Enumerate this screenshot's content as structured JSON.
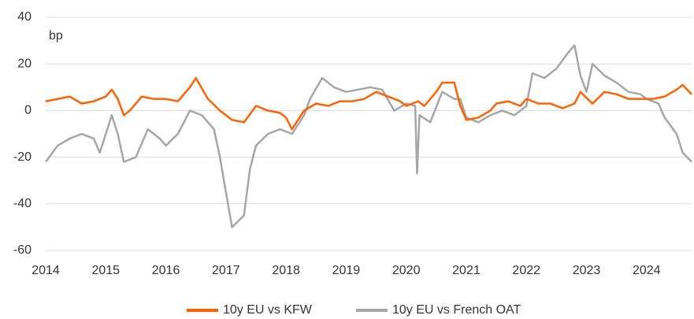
{
  "chart_data": {
    "type": "line",
    "y_label": "bp",
    "x": {
      "kfw": [
        2014.0,
        2014.2,
        2014.4,
        2014.6,
        2014.8,
        2015.0,
        2015.1,
        2015.2,
        2015.3,
        2015.4,
        2015.6,
        2015.8,
        2016.0,
        2016.2,
        2016.4,
        2016.5,
        2016.7,
        2016.9,
        2017.1,
        2017.3,
        2017.5,
        2017.7,
        2017.9,
        2018.0,
        2018.1,
        2018.3,
        2018.5,
        2018.7,
        2018.9,
        2019.1,
        2019.3,
        2019.5,
        2019.7,
        2019.9,
        2020.0,
        2020.2,
        2020.3,
        2020.5,
        2020.6,
        2020.8,
        2020.9,
        2021.0,
        2021.2,
        2021.4,
        2021.5,
        2021.7,
        2021.9,
        2022.0,
        2022.2,
        2022.4,
        2022.6,
        2022.8,
        2022.9,
        2023.1,
        2023.3,
        2023.5,
        2023.7,
        2023.9,
        2024.1,
        2024.3,
        2024.5,
        2024.6,
        2024.75
      ],
      "oat": [
        2014.0,
        2014.2,
        2014.4,
        2014.6,
        2014.8,
        2014.9,
        2015.1,
        2015.2,
        2015.3,
        2015.5,
        2015.7,
        2015.9,
        2016.0,
        2016.2,
        2016.4,
        2016.6,
        2016.8,
        2016.9,
        2017.0,
        2017.1,
        2017.3,
        2017.4,
        2017.5,
        2017.7,
        2017.9,
        2018.1,
        2018.3,
        2018.4,
        2018.6,
        2018.8,
        2019.0,
        2019.2,
        2019.4,
        2019.6,
        2019.8,
        2020.0,
        2020.15,
        2020.18,
        2020.22,
        2020.4,
        2020.6,
        2020.8,
        2020.9,
        2021.0,
        2021.2,
        2021.4,
        2021.6,
        2021.8,
        2022.0,
        2022.1,
        2022.3,
        2022.5,
        2022.7,
        2022.8,
        2022.9,
        2023.0,
        2023.1,
        2023.3,
        2023.5,
        2023.7,
        2023.9,
        2024.0,
        2024.2,
        2024.3,
        2024.5,
        2024.6,
        2024.75
      ]
    },
    "series": [
      {
        "name": "10y EU vs KFW",
        "color": "#ff6200",
        "xkey": "kfw",
        "values": [
          4,
          5,
          6,
          3,
          4,
          6,
          9,
          5,
          -2,
          0,
          6,
          5,
          5,
          4,
          10,
          14,
          5,
          0,
          -4,
          -5,
          2,
          0,
          -1,
          -3,
          -8,
          0,
          3,
          2,
          4,
          4,
          5,
          8,
          6,
          4,
          2,
          4,
          2,
          8,
          12,
          12,
          2,
          -4,
          -3,
          0,
          3,
          4,
          2,
          5,
          3,
          3,
          1,
          3,
          8,
          3,
          8,
          7,
          5,
          5,
          5,
          6,
          9,
          11,
          7
        ]
      },
      {
        "name": "10y EU vs French OAT",
        "color": "#a6a6a6",
        "xkey": "oat",
        "values": [
          -22,
          -15,
          -12,
          -10,
          -12,
          -18,
          -2,
          -10,
          -22,
          -20,
          -8,
          -12,
          -15,
          -10,
          0,
          -2,
          -8,
          -20,
          -35,
          -50,
          -45,
          -25,
          -15,
          -10,
          -8,
          -10,
          -2,
          5,
          14,
          10,
          8,
          9,
          10,
          9,
          0,
          3,
          2,
          -27,
          -2,
          -5,
          8,
          5,
          5,
          -3,
          -5,
          -2,
          0,
          -2,
          2,
          16,
          14,
          18,
          25,
          28,
          15,
          8,
          20,
          15,
          12,
          8,
          7,
          5,
          3,
          -3,
          -10,
          -18,
          -22
        ]
      }
    ],
    "xlim": [
      2014,
      2024.75
    ],
    "xticks": [
      2014,
      2015,
      2016,
      2017,
      2018,
      2019,
      2020,
      2021,
      2022,
      2023,
      2024
    ],
    "ylim": [
      -60,
      40
    ],
    "yticks": [
      -60,
      -40,
      -20,
      0,
      20,
      40
    ],
    "grid": true,
    "legend": "bottom"
  }
}
